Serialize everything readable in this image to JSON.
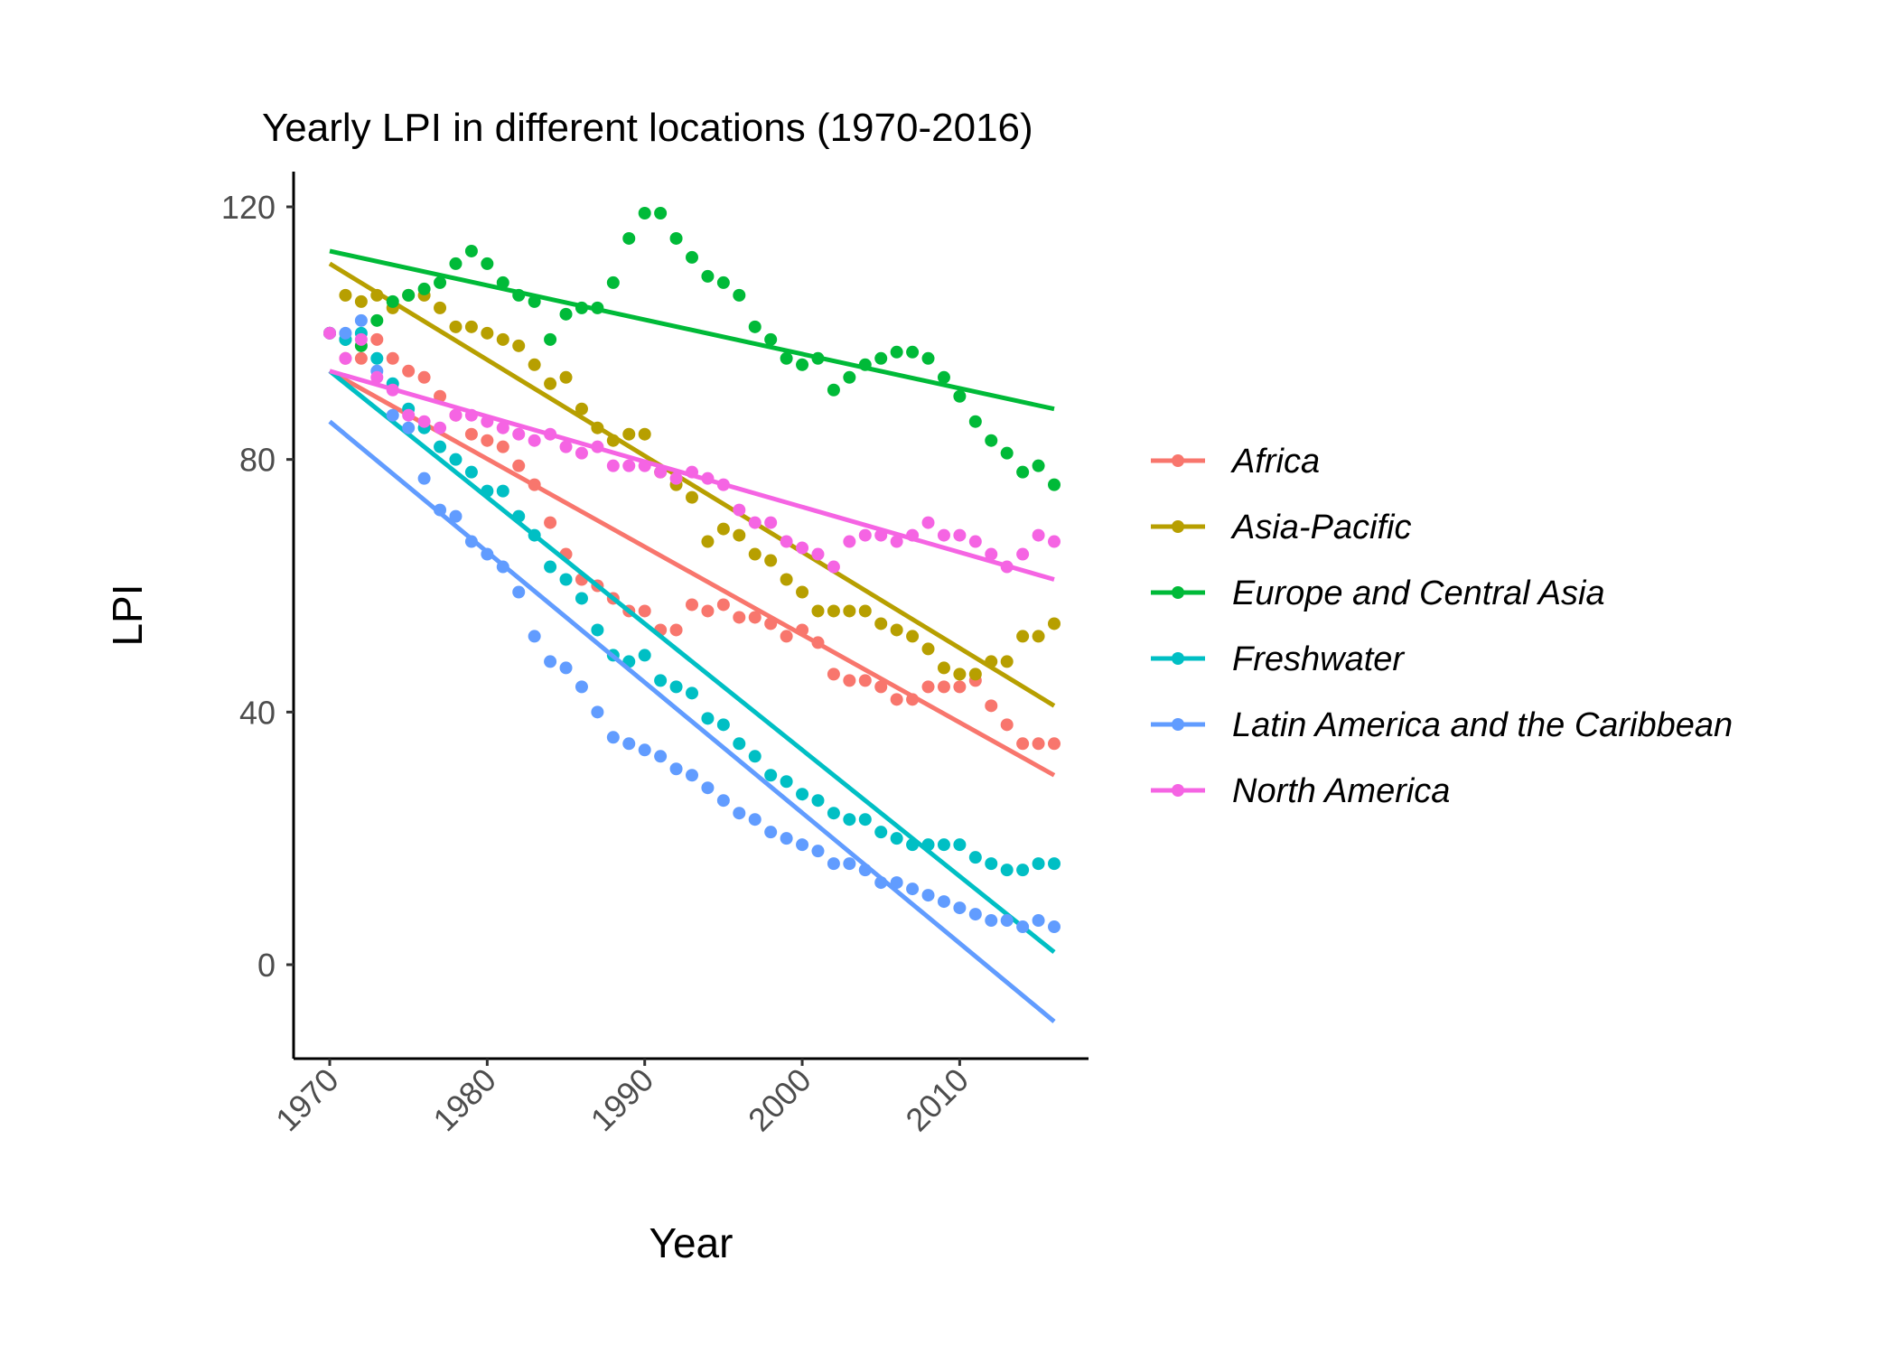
{
  "chart_data": {
    "type": "scatter",
    "title": "Yearly LPI in different locations (1970-2016)",
    "xlabel": "Year",
    "ylabel": "LPI",
    "xlim": [
      1968,
      2018
    ],
    "ylim": [
      -15,
      127
    ],
    "xticks": [
      1970,
      1980,
      1990,
      2000,
      2010
    ],
    "yticks": [
      0,
      40,
      80,
      120
    ],
    "grid": false,
    "legend_position": "right",
    "x": [
      1970,
      1971,
      1972,
      1973,
      1974,
      1975,
      1976,
      1977,
      1978,
      1979,
      1980,
      1981,
      1982,
      1983,
      1984,
      1985,
      1986,
      1987,
      1988,
      1989,
      1990,
      1991,
      1992,
      1993,
      1994,
      1995,
      1996,
      1997,
      1998,
      1999,
      2000,
      2001,
      2002,
      2003,
      2004,
      2005,
      2006,
      2007,
      2008,
      2009,
      2010,
      2011,
      2012,
      2013,
      2014,
      2015,
      2016
    ],
    "series": [
      {
        "name": "Africa",
        "color": "#F8766D",
        "values": [
          100,
          96,
          96,
          99,
          96,
          94,
          93,
          90,
          87,
          84,
          83,
          82,
          79,
          76,
          70,
          65,
          61,
          60,
          58,
          56,
          56,
          53,
          53,
          57,
          56,
          57,
          55,
          55,
          54,
          52,
          53,
          51,
          46,
          45,
          45,
          44,
          42,
          42,
          44,
          44,
          44,
          45,
          41,
          38,
          35,
          35,
          35
        ],
        "trend": [
          94,
          30
        ]
      },
      {
        "name": "Asia-Pacific",
        "color": "#B79F00",
        "values": [
          100,
          106,
          105,
          106,
          104,
          106,
          106,
          104,
          101,
          101,
          100,
          99,
          98,
          95,
          92,
          93,
          88,
          85,
          83,
          84,
          84,
          78,
          76,
          74,
          67,
          69,
          68,
          65,
          64,
          61,
          59,
          56,
          56,
          56,
          56,
          54,
          53,
          52,
          50,
          47,
          46,
          46,
          48,
          48,
          52,
          52,
          54
        ],
        "trend": [
          111,
          41
        ]
      },
      {
        "name": "Europe and Central Asia",
        "color": "#00BA38",
        "values": [
          100,
          99,
          98,
          102,
          105,
          106,
          107,
          108,
          111,
          113,
          111,
          108,
          106,
          105,
          99,
          103,
          104,
          104,
          108,
          115,
          119,
          119,
          115,
          112,
          109,
          108,
          106,
          101,
          99,
          96,
          95,
          96,
          91,
          93,
          95,
          96,
          97,
          97,
          96,
          93,
          90,
          86,
          83,
          81,
          78,
          79,
          76
        ],
        "trend": [
          113,
          88
        ]
      },
      {
        "name": "Freshwater",
        "color": "#00BFC4",
        "values": [
          100,
          99,
          100,
          96,
          92,
          88,
          85,
          82,
          80,
          78,
          75,
          75,
          71,
          68,
          63,
          61,
          58,
          53,
          49,
          48,
          49,
          45,
          44,
          43,
          39,
          38,
          35,
          33,
          30,
          29,
          27,
          26,
          24,
          23,
          23,
          21,
          20,
          19,
          19,
          19,
          19,
          17,
          16,
          15,
          15,
          16,
          16
        ],
        "trend": [
          94,
          2
        ]
      },
      {
        "name": "Latin America and the Caribbean",
        "color": "#619CFF",
        "values": [
          100,
          100,
          102,
          94,
          87,
          85,
          77,
          72,
          71,
          67,
          65,
          63,
          59,
          52,
          48,
          47,
          44,
          40,
          36,
          35,
          34,
          33,
          31,
          30,
          28,
          26,
          24,
          23,
          21,
          20,
          19,
          18,
          16,
          16,
          15,
          13,
          13,
          12,
          11,
          10,
          9,
          8,
          7,
          7,
          6,
          7,
          6
        ],
        "trend": [
          86,
          -9
        ]
      },
      {
        "name": "North America",
        "color": "#F564E3",
        "values": [
          100,
          96,
          99,
          93,
          91,
          87,
          86,
          85,
          87,
          87,
          86,
          85,
          84,
          83,
          84,
          82,
          81,
          82,
          79,
          79,
          79,
          78,
          77,
          78,
          77,
          76,
          72,
          70,
          70,
          67,
          66,
          65,
          63,
          67,
          68,
          68,
          67,
          68,
          70,
          68,
          68,
          67,
          65,
          63,
          65,
          68,
          67
        ],
        "trend": [
          94,
          61
        ]
      }
    ]
  }
}
